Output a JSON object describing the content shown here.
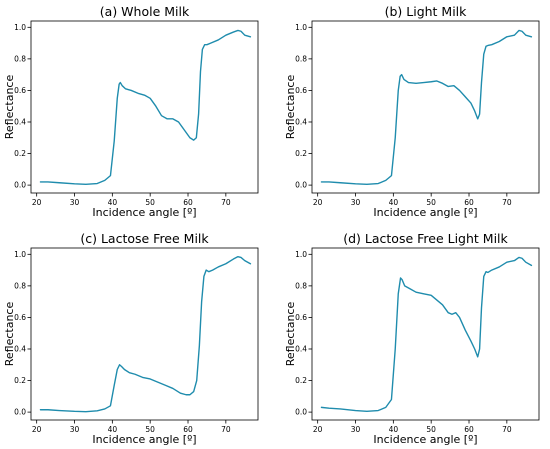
{
  "figure": {
    "line_color": "#1f8cad"
  },
  "chart_data": [
    {
      "type": "line",
      "title": "(a) Whole Milk",
      "xlabel": "Incidence angle [º]",
      "ylabel": "Reflectance",
      "xlim": [
        18.5,
        78.5
      ],
      "ylim": [
        -0.05,
        1.04
      ],
      "xticks": [
        20,
        30,
        40,
        50,
        60,
        70
      ],
      "yticks": [
        0.0,
        0.2,
        0.4,
        0.6,
        0.8,
        1.0
      ],
      "series": [
        {
          "x": [
            21,
            23,
            26,
            30,
            33,
            36,
            38,
            39.5,
            40.5,
            41.3,
            41.8,
            42.1,
            42.6,
            43.5,
            45,
            47,
            48.5,
            50,
            51.5,
            53,
            54.5,
            56,
            57.5,
            59,
            60.5,
            61.5,
            62.2,
            62.8,
            63.3,
            63.8,
            64.4,
            65,
            66,
            68,
            70,
            72,
            73.2,
            74,
            75,
            76.5
          ],
          "y": [
            0.02,
            0.02,
            0.015,
            0.008,
            0.005,
            0.01,
            0.03,
            0.06,
            0.28,
            0.55,
            0.64,
            0.65,
            0.63,
            0.61,
            0.6,
            0.58,
            0.57,
            0.55,
            0.5,
            0.44,
            0.42,
            0.42,
            0.4,
            0.35,
            0.3,
            0.285,
            0.3,
            0.45,
            0.72,
            0.86,
            0.89,
            0.89,
            0.9,
            0.92,
            0.95,
            0.97,
            0.98,
            0.975,
            0.95,
            0.94
          ]
        }
      ]
    },
    {
      "type": "line",
      "title": "(b) Light Milk",
      "xlabel": "Incidence angle [º]",
      "ylabel": "Reflectance",
      "xlim": [
        18.5,
        78.5
      ],
      "ylim": [
        -0.05,
        1.04
      ],
      "xticks": [
        20,
        30,
        40,
        50,
        60,
        70
      ],
      "yticks": [
        0.0,
        0.2,
        0.4,
        0.6,
        0.8,
        1.0
      ],
      "series": [
        {
          "x": [
            21,
            23,
            26,
            30,
            33,
            36,
            38,
            39.5,
            40.5,
            41.3,
            41.8,
            42.2,
            42.8,
            44,
            46,
            48,
            50,
            51.5,
            53,
            54.5,
            56,
            57.5,
            59,
            60.5,
            61.5,
            62.3,
            62.8,
            63.3,
            63.9,
            64.5,
            65,
            66,
            68,
            70,
            72,
            73.2,
            74,
            75,
            76.5
          ],
          "y": [
            0.02,
            0.02,
            0.015,
            0.008,
            0.005,
            0.01,
            0.03,
            0.06,
            0.3,
            0.6,
            0.69,
            0.7,
            0.67,
            0.65,
            0.645,
            0.65,
            0.655,
            0.66,
            0.645,
            0.625,
            0.63,
            0.6,
            0.56,
            0.52,
            0.47,
            0.42,
            0.45,
            0.65,
            0.83,
            0.88,
            0.885,
            0.89,
            0.91,
            0.94,
            0.95,
            0.98,
            0.975,
            0.95,
            0.94
          ]
        }
      ]
    },
    {
      "type": "line",
      "title": "(c) Lactose Free Milk",
      "xlabel": "Incidence angle [º]",
      "ylabel": "Reflectance",
      "xlim": [
        18.5,
        78.5
      ],
      "ylim": [
        -0.05,
        1.04
      ],
      "xticks": [
        20,
        30,
        40,
        50,
        60,
        70
      ],
      "yticks": [
        0.0,
        0.2,
        0.4,
        0.6,
        0.8,
        1.0
      ],
      "series": [
        {
          "x": [
            21,
            23,
            26,
            30,
            33,
            36,
            38,
            39.5,
            40.5,
            41.3,
            41.9,
            42.4,
            43.2,
            44.5,
            46,
            48,
            50,
            52,
            54,
            56,
            58,
            59.5,
            60.5,
            61.5,
            62.3,
            63,
            63.6,
            64.2,
            64.8,
            65.5,
            66.5,
            68,
            70,
            72,
            73.2,
            74,
            75,
            76.5
          ],
          "y": [
            0.015,
            0.015,
            0.01,
            0.005,
            0.003,
            0.008,
            0.02,
            0.04,
            0.17,
            0.27,
            0.3,
            0.29,
            0.27,
            0.25,
            0.24,
            0.22,
            0.21,
            0.19,
            0.17,
            0.15,
            0.12,
            0.11,
            0.11,
            0.13,
            0.2,
            0.42,
            0.7,
            0.86,
            0.9,
            0.89,
            0.9,
            0.92,
            0.94,
            0.97,
            0.985,
            0.98,
            0.96,
            0.94
          ]
        }
      ]
    },
    {
      "type": "line",
      "title": "(d) Lactose Free Light Milk",
      "xlabel": "Incidence angle [º]",
      "ylabel": "Reflectance",
      "xlim": [
        18.5,
        78.5
      ],
      "ylim": [
        -0.05,
        1.04
      ],
      "xticks": [
        20,
        30,
        40,
        50,
        60,
        70
      ],
      "yticks": [
        0.0,
        0.2,
        0.4,
        0.6,
        0.8,
        1.0
      ],
      "series": [
        {
          "x": [
            21,
            23,
            26,
            30,
            33,
            36,
            38,
            39.5,
            40.5,
            41.3,
            41.9,
            42.3,
            43,
            44.5,
            46,
            48,
            50,
            51.5,
            53,
            54.5,
            55.5,
            56.5,
            57.5,
            59,
            60.5,
            61.5,
            62.3,
            62.8,
            63.3,
            63.9,
            64.5,
            65,
            66,
            68,
            70,
            72,
            73.2,
            74,
            75,
            76.5
          ],
          "y": [
            0.03,
            0.025,
            0.02,
            0.01,
            0.005,
            0.01,
            0.03,
            0.08,
            0.4,
            0.75,
            0.85,
            0.84,
            0.8,
            0.78,
            0.76,
            0.75,
            0.74,
            0.71,
            0.68,
            0.63,
            0.62,
            0.63,
            0.6,
            0.52,
            0.45,
            0.4,
            0.35,
            0.4,
            0.66,
            0.86,
            0.89,
            0.885,
            0.9,
            0.92,
            0.95,
            0.96,
            0.98,
            0.975,
            0.95,
            0.93
          ]
        }
      ]
    }
  ]
}
